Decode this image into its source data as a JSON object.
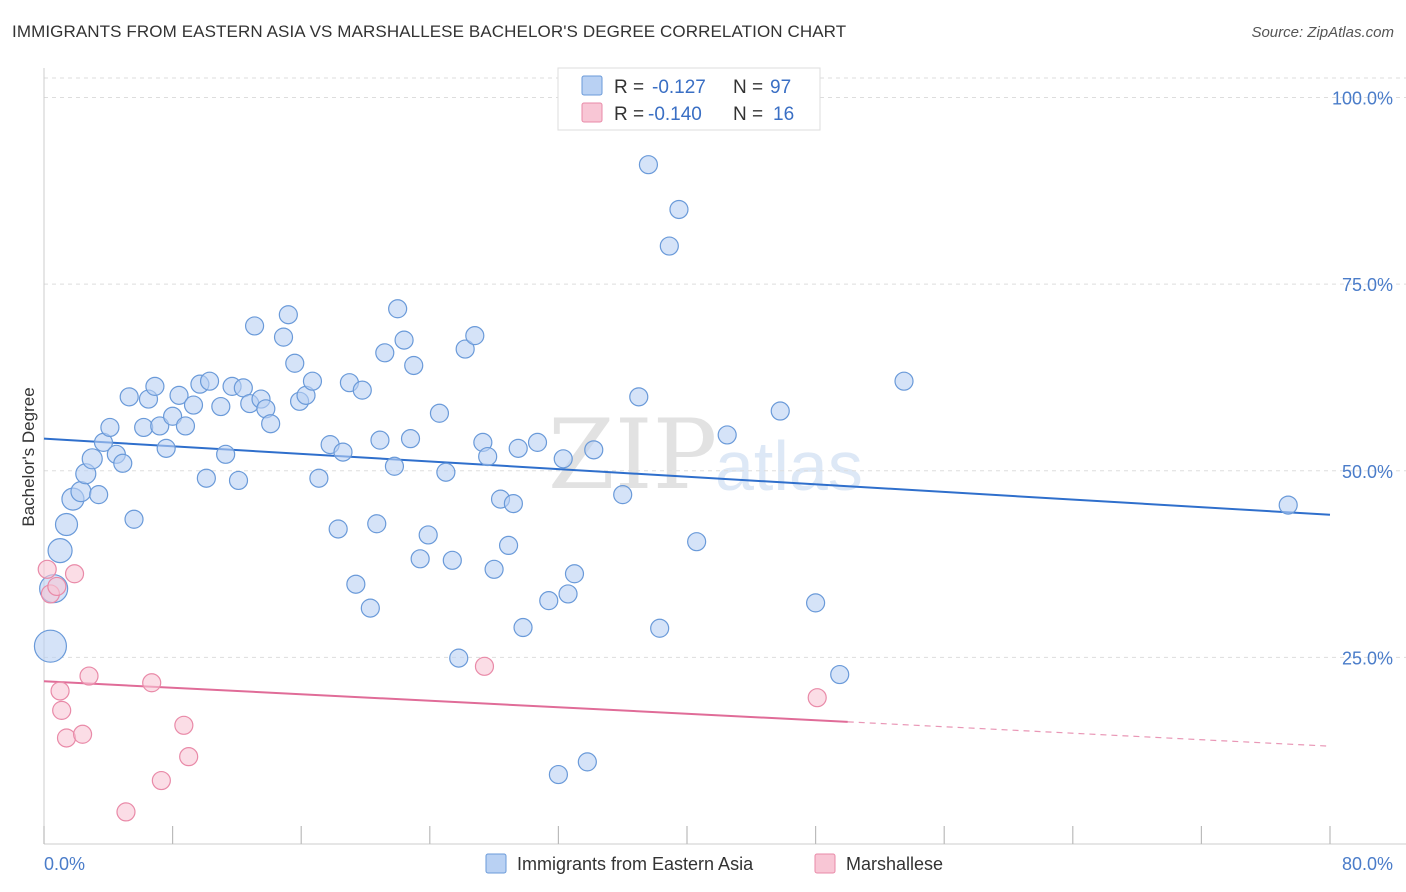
{
  "title": "IMMIGRANTS FROM EASTERN ASIA VS MARSHALLESE BACHELOR'S DEGREE CORRELATION CHART",
  "source": "Source: ZipAtlas.com",
  "watermark": {
    "zip": "ZIP",
    "atlas": "atlas"
  },
  "legend": {
    "r_label": "R =",
    "n_label": "N =",
    "items": [
      {
        "r": "-0.127",
        "n": "97"
      },
      {
        "r": "-0.140",
        "n": "16"
      }
    ]
  },
  "bottom_legend": [
    "Immigrants from Eastern Asia",
    "Marshallese"
  ],
  "colors": {
    "blue_fill": "#b9d1f3",
    "blue_stroke": "#6a9ad9",
    "blue_line": "#2f6fcc",
    "pink_fill": "#f8c6d5",
    "pink_stroke": "#e98aa8",
    "pink_line": "#e06c98",
    "grid": "#dddddd",
    "axis": "#cccccc"
  },
  "chart_data": {
    "type": "scatter",
    "xlabel": "",
    "ylabel": "Bachelor's Degree",
    "xlim": [
      0,
      80
    ],
    "ylim": [
      0,
      100
    ],
    "x_ticks": [
      "0.0%",
      "80.0%"
    ],
    "y_ticks": [
      {
        "value": 100,
        "label": "100.0%"
      },
      {
        "value": 75,
        "label": "75.0%"
      },
      {
        "value": 50,
        "label": "50.0%"
      },
      {
        "value": 25,
        "label": "25.0%"
      }
    ],
    "grid": true,
    "series": [
      {
        "name": "Immigrants from Eastern Asia",
        "trend": {
          "x": [
            0,
            80
          ],
          "y": [
            54.3,
            44.1
          ],
          "solid_until": 80
        },
        "points": [
          [
            0.4,
            26.5,
            16
          ],
          [
            0.6,
            34.2,
            14
          ],
          [
            1.0,
            39.3,
            12
          ],
          [
            1.4,
            42.8,
            11
          ],
          [
            1.8,
            46.2,
            11
          ],
          [
            2.3,
            47.2,
            10
          ],
          [
            2.6,
            49.6,
            10
          ],
          [
            3.0,
            51.6,
            10
          ],
          [
            3.4,
            46.8,
            9
          ],
          [
            3.7,
            53.8,
            9
          ],
          [
            4.1,
            55.8,
            9
          ],
          [
            4.5,
            52.2,
            9
          ],
          [
            4.9,
            51.0,
            9
          ],
          [
            5.3,
            59.9,
            9
          ],
          [
            5.6,
            43.5,
            9
          ],
          [
            6.2,
            55.8,
            9
          ],
          [
            6.5,
            59.6,
            9
          ],
          [
            6.9,
            61.3,
            9
          ],
          [
            7.2,
            56.0,
            9
          ],
          [
            7.6,
            53.0,
            9
          ],
          [
            8.0,
            57.3,
            9
          ],
          [
            8.4,
            60.1,
            9
          ],
          [
            8.8,
            56.0,
            9
          ],
          [
            9.3,
            58.8,
            9
          ],
          [
            9.7,
            61.6,
            9
          ],
          [
            10.1,
            49.0,
            9
          ],
          [
            10.3,
            62.0,
            9
          ],
          [
            11.0,
            58.6,
            9
          ],
          [
            11.3,
            52.2,
            9
          ],
          [
            11.7,
            61.3,
            9
          ],
          [
            12.1,
            48.7,
            9
          ],
          [
            12.4,
            61.1,
            9
          ],
          [
            12.8,
            59.0,
            9
          ],
          [
            13.1,
            69.4,
            9
          ],
          [
            13.5,
            59.6,
            9
          ],
          [
            13.8,
            58.3,
            9
          ],
          [
            14.1,
            56.3,
            9
          ],
          [
            14.9,
            67.9,
            9
          ],
          [
            15.2,
            70.9,
            9
          ],
          [
            15.6,
            64.4,
            9
          ],
          [
            15.9,
            59.3,
            9
          ],
          [
            16.3,
            60.1,
            9
          ],
          [
            16.7,
            62.0,
            9
          ],
          [
            17.1,
            49.0,
            9
          ],
          [
            17.8,
            53.5,
            9
          ],
          [
            18.3,
            42.2,
            9
          ],
          [
            18.6,
            52.5,
            9
          ],
          [
            19.0,
            61.8,
            9
          ],
          [
            19.4,
            34.8,
            9
          ],
          [
            19.8,
            60.8,
            9
          ],
          [
            20.3,
            31.6,
            9
          ],
          [
            20.7,
            42.9,
            9
          ],
          [
            20.9,
            54.1,
            9
          ],
          [
            21.2,
            65.8,
            9
          ],
          [
            21.8,
            50.6,
            9
          ],
          [
            22.0,
            71.7,
            9
          ],
          [
            22.4,
            67.5,
            9
          ],
          [
            22.8,
            54.3,
            9
          ],
          [
            23.0,
            64.1,
            9
          ],
          [
            23.4,
            38.2,
            9
          ],
          [
            23.9,
            41.4,
            9
          ],
          [
            24.6,
            57.7,
            9
          ],
          [
            25.0,
            49.8,
            9
          ],
          [
            25.4,
            38.0,
            9
          ],
          [
            25.8,
            24.9,
            9
          ],
          [
            26.2,
            66.3,
            9
          ],
          [
            26.8,
            68.1,
            9
          ],
          [
            27.3,
            53.8,
            9
          ],
          [
            27.6,
            51.9,
            9
          ],
          [
            28.0,
            36.8,
            9
          ],
          [
            28.4,
            46.2,
            9
          ],
          [
            28.9,
            40.0,
            9
          ],
          [
            29.2,
            45.6,
            9
          ],
          [
            29.5,
            53.0,
            9
          ],
          [
            29.8,
            29.0,
            9
          ],
          [
            30.7,
            53.8,
            9
          ],
          [
            31.4,
            32.6,
            9
          ],
          [
            32.0,
            9.3,
            9
          ],
          [
            32.3,
            51.6,
            9
          ],
          [
            32.6,
            33.5,
            9
          ],
          [
            33.0,
            36.2,
            9
          ],
          [
            33.8,
            11.0,
            9
          ],
          [
            34.2,
            52.8,
            9
          ],
          [
            36.0,
            46.8,
            9
          ],
          [
            37.0,
            59.9,
            9
          ],
          [
            37.6,
            91.0,
            9
          ],
          [
            38.3,
            28.9,
            9
          ],
          [
            38.9,
            80.1,
            9
          ],
          [
            39.5,
            85.0,
            9
          ],
          [
            40.6,
            40.5,
            9
          ],
          [
            42.5,
            54.8,
            9
          ],
          [
            45.8,
            58.0,
            9
          ],
          [
            48.0,
            32.3,
            9
          ],
          [
            49.5,
            22.7,
            9
          ],
          [
            53.5,
            62.0,
            9
          ],
          [
            77.4,
            45.4,
            9
          ]
        ]
      },
      {
        "name": "Marshallese",
        "trend": {
          "x": [
            0,
            80
          ],
          "y": [
            21.8,
            13.1
          ],
          "solid_until": 50
        },
        "points": [
          [
            0.2,
            36.8,
            9
          ],
          [
            0.4,
            33.5,
            9
          ],
          [
            0.8,
            34.5,
            9
          ],
          [
            1.0,
            20.5,
            9
          ],
          [
            1.1,
            17.9,
            9
          ],
          [
            1.4,
            14.2,
            9
          ],
          [
            1.9,
            36.2,
            9
          ],
          [
            2.4,
            14.7,
            9
          ],
          [
            2.8,
            22.5,
            9
          ],
          [
            5.1,
            4.3,
            9
          ],
          [
            6.7,
            21.6,
            9
          ],
          [
            7.3,
            8.5,
            9
          ],
          [
            8.7,
            15.9,
            9
          ],
          [
            9.0,
            11.7,
            9
          ],
          [
            27.4,
            23.8,
            9
          ],
          [
            48.1,
            19.6,
            9
          ]
        ]
      }
    ]
  }
}
